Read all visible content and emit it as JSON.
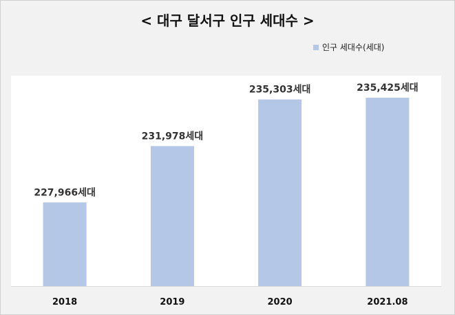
{
  "chart_data": {
    "type": "bar",
    "title": "< 대구 달서구 인구 세대수 >",
    "categories": [
      "2018",
      "2019",
      "2020",
      "2021.08"
    ],
    "series": [
      {
        "name": "인구 세대수(세대)",
        "values": [
          227966,
          231978,
          235303,
          235425
        ],
        "labels": [
          "227,966세대",
          "231,978세대",
          "235,303세대",
          "235,425세대"
        ]
      }
    ],
    "ylim": [
      222000,
      237000
    ],
    "xlabel": "",
    "ylabel": "",
    "grid": false,
    "legend_position": "top-right",
    "bar_color": "#b4c7e7",
    "axis_color": "#d9d9d9"
  }
}
